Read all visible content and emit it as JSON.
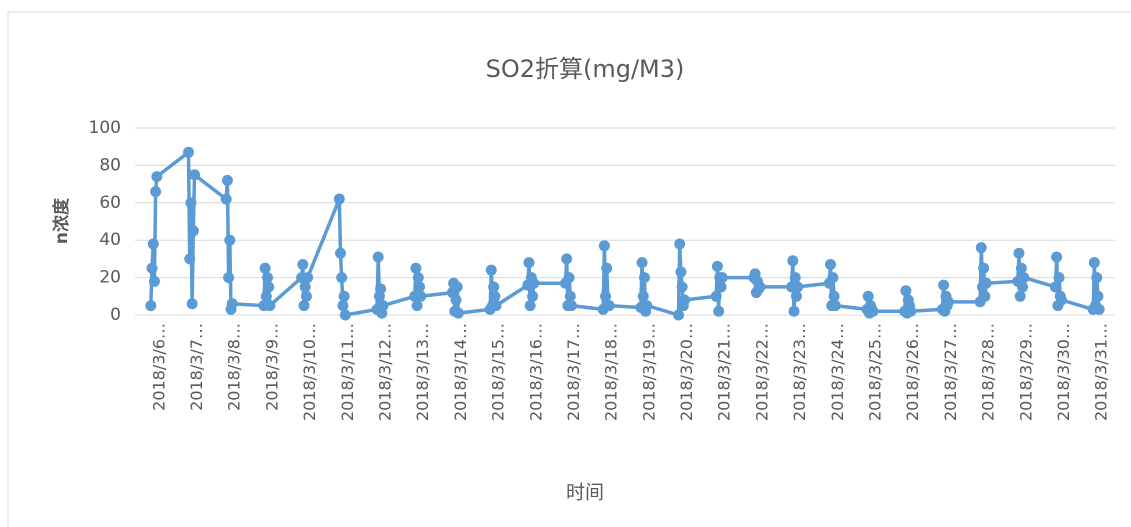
{
  "chart_data": {
    "type": "line",
    "title": "SO2折算(mg/M3)",
    "y_label": "n浓度",
    "x_label": "时间",
    "categories": [
      "2018/3/6…",
      null,
      null,
      null,
      null,
      null,
      "2018/3/7…",
      null,
      null,
      null,
      null,
      null,
      "2018/3/8…",
      null,
      null,
      null,
      null,
      null,
      "2018/3/9…",
      null,
      null,
      null,
      null,
      null,
      "2018/3/10…",
      null,
      null,
      null,
      null,
      null,
      "2018/3/11…",
      null,
      null,
      null,
      null,
      null,
      "2018/3/12…",
      null,
      null,
      null,
      null,
      null,
      "2018/3/13…",
      null,
      null,
      null,
      null,
      null,
      "2018/3/14…",
      null,
      null,
      null,
      null,
      null,
      "2018/3/15…",
      null,
      null,
      null,
      null,
      null,
      "2018/3/16…",
      null,
      null,
      null,
      null,
      null,
      "2018/3/17…",
      null,
      null,
      null,
      null,
      null,
      "2018/3/18…",
      null,
      null,
      null,
      null,
      null,
      "2018/3/19…",
      null,
      null,
      null,
      null,
      null,
      "2018/3/20…",
      null,
      null,
      null,
      null,
      null,
      "2018/3/21…",
      null,
      null,
      null,
      null,
      null,
      "2018/3/22…",
      null,
      null,
      null,
      null,
      null,
      "2018/3/23…",
      null,
      null,
      null,
      null,
      null,
      "2018/3/24…",
      null,
      null,
      null,
      null,
      null,
      "2018/3/25…",
      null,
      null,
      null,
      null,
      null,
      "2018/3/26…",
      null,
      null,
      null,
      null,
      null,
      "2018/3/27…",
      null,
      null,
      null,
      null,
      null,
      "2018/3/28…",
      null,
      null,
      null,
      null,
      null,
      "2018/3/29…",
      null,
      null,
      null,
      null,
      null,
      "2018/3/30…",
      null,
      null,
      null,
      null,
      null,
      "2018/3/31…",
      null,
      null,
      null,
      null,
      null
    ],
    "series": [
      {
        "color": "#5b9bd5",
        "values": [
          5,
          25,
          38,
          18,
          66,
          74,
          87,
          30,
          60,
          6,
          45,
          75,
          62,
          72,
          20,
          40,
          3,
          6,
          5,
          25,
          10,
          20,
          15,
          5,
          20,
          27,
          5,
          15,
          10,
          20,
          62,
          33,
          20,
          5,
          10,
          0,
          3,
          31,
          10,
          14,
          1,
          5,
          10,
          25,
          5,
          20,
          15,
          10,
          12,
          17,
          2,
          8,
          15,
          1,
          3,
          24,
          5,
          15,
          10,
          5,
          16,
          28,
          5,
          20,
          10,
          17,
          17,
          30,
          5,
          20,
          10,
          5,
          3,
          37,
          10,
          25,
          5,
          5,
          4,
          28,
          10,
          20,
          2,
          5,
          0,
          38,
          23,
          15,
          5,
          8,
          10,
          26,
          2,
          20,
          15,
          20,
          20,
          22,
          12,
          18,
          14,
          15,
          15,
          29,
          2,
          20,
          10,
          15,
          17,
          27,
          5,
          20,
          10,
          5,
          3,
          10,
          1,
          5,
          3,
          2,
          2,
          13,
          1,
          8,
          5,
          2,
          3,
          16,
          2,
          10,
          5,
          7,
          7,
          36,
          15,
          25,
          10,
          17,
          18,
          33,
          10,
          25,
          15,
          20,
          15,
          31,
          5,
          20,
          10,
          8,
          3,
          28,
          5,
          20,
          10,
          3
        ]
      }
    ],
    "ylim": [
      0,
      100
    ],
    "yticks": [
      0,
      20,
      40,
      60,
      80,
      100
    ],
    "grid": true
  }
}
